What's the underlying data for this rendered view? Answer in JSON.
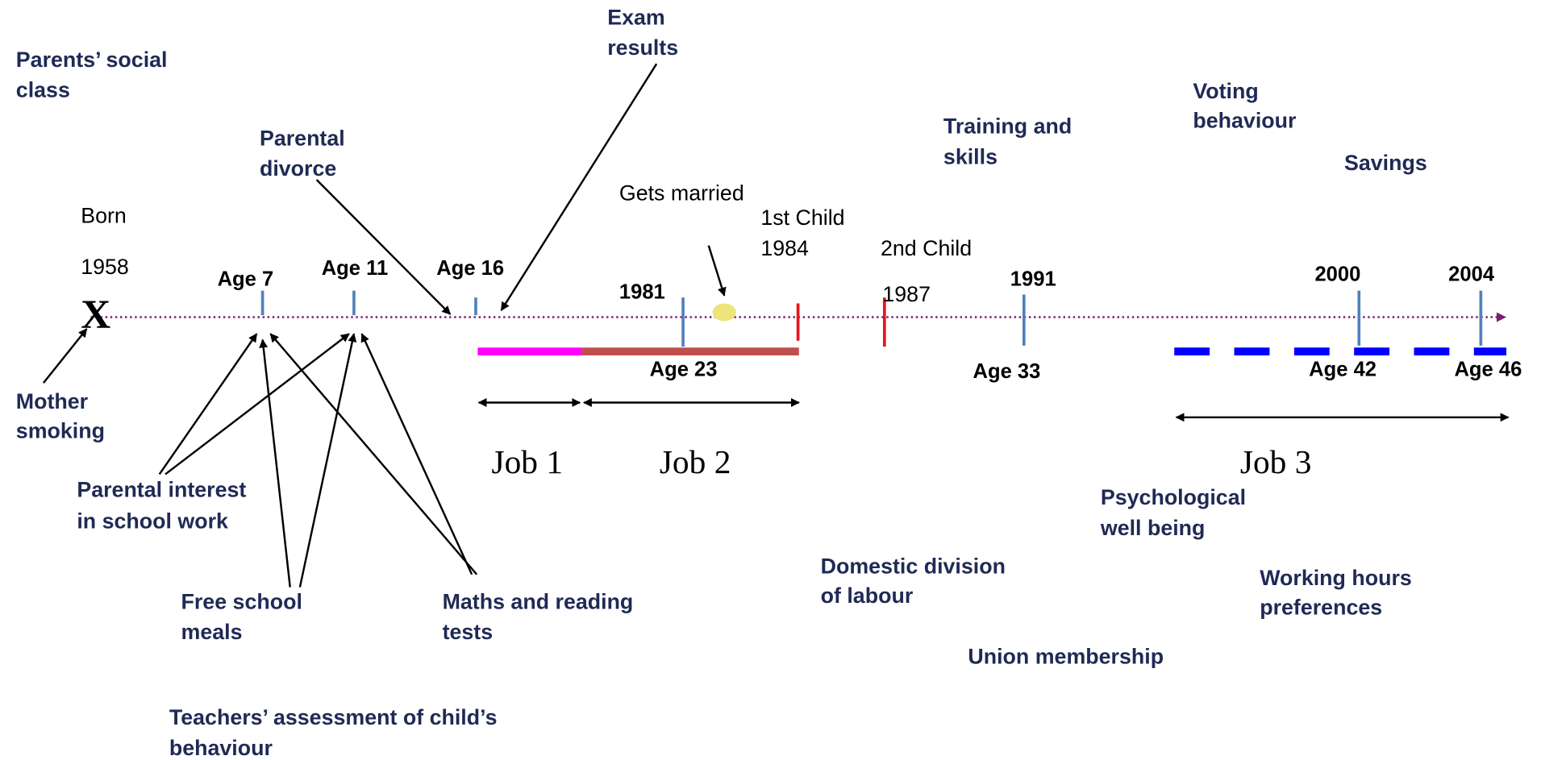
{
  "factors": [
    {
      "lines": [
        "Parents’ social",
        "class"
      ]
    },
    {
      "lines": [
        "Exam",
        "results"
      ]
    },
    {
      "lines": [
        "Parental",
        "divorce"
      ]
    },
    {
      "lines": [
        "Training and",
        "skills"
      ]
    },
    {
      "lines": [
        "Voting",
        "behaviour"
      ]
    },
    {
      "lines": [
        "Savings"
      ]
    },
    {
      "lines": [
        "Mother",
        "smoking"
      ]
    },
    {
      "lines": [
        "Parental interest",
        "in school work"
      ]
    },
    {
      "lines": [
        "Free school",
        "meals"
      ]
    },
    {
      "lines": [
        "Maths and reading",
        "tests"
      ]
    },
    {
      "lines": [
        "Psychological",
        "well being"
      ]
    },
    {
      "lines": [
        "Domestic division",
        "of labour"
      ]
    },
    {
      "lines": [
        "Working hours",
        "preferences"
      ]
    },
    {
      "lines": [
        "Union membership"
      ]
    },
    {
      "lines": [
        "Teachers’ assessment of child’s",
        "behaviour"
      ]
    }
  ],
  "timeline": {
    "born": "Born",
    "birth_year": "1958",
    "start_mark": "X",
    "sweeps": [
      "Age 7",
      "Age 11",
      "Age 16",
      "1981",
      "Age 23",
      "1991",
      "Age 33",
      "2000",
      "Age 42",
      "2004",
      "Age 46"
    ]
  },
  "events": {
    "married": "Gets married",
    "first_child": [
      "1st Child",
      "1984"
    ],
    "second_child": [
      "2nd Child",
      "1987"
    ]
  },
  "jobs": [
    "Job 1",
    "Job 2",
    "Job 3"
  ]
}
